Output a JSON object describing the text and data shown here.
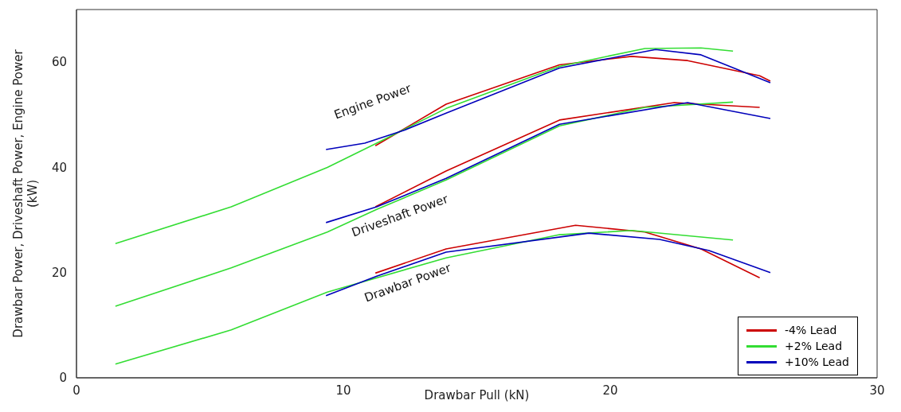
{
  "chart_data": {
    "type": "line",
    "xlabel": "Drawbar Pull (kN)",
    "ylabel": "Drawbar Power, Driveshaft Power, Engine Power (kW)",
    "xlim": [
      0,
      30
    ],
    "xticks": [
      0,
      10,
      20,
      30
    ],
    "ylim": [
      0,
      70
    ],
    "yticks": [
      0,
      20,
      40,
      60
    ],
    "legend": "bottom right",
    "grid": false,
    "annotations": [
      "Engine Power",
      "Driveshaft Power",
      "Drawbar Power"
    ],
    "series": [
      {
        "name": "-4% Lead",
        "color": "#cc0000",
        "x": [
          11.2,
          13.85,
          18.1,
          20.8,
          22.9,
          25.6,
          26.0
        ],
        "values": [
          44.1,
          52,
          59.5,
          61.1,
          60.3,
          57.4,
          56.4
        ]
      },
      {
        "name": "+2% Lead",
        "color": "#33dd33",
        "x": [
          1.46,
          5.8,
          9.4,
          11.25,
          13.85,
          18.1,
          21.3,
          23.4,
          24.6
        ],
        "values": [
          25.5,
          32.5,
          40,
          44.6,
          51.2,
          59.2,
          62.6,
          62.7,
          62.1
        ]
      },
      {
        "name": "+10% Lead",
        "color": "#0000bb",
        "x": [
          9.35,
          10.8,
          12.3,
          13.85,
          18.1,
          21.7,
          23.4,
          26.0
        ],
        "values": [
          43.4,
          44.6,
          47.1,
          50.3,
          58.9,
          62.4,
          61.4,
          56.1
        ]
      },
      {
        "color": "#cc0000",
        "x": [
          11.2,
          13.85,
          18.1,
          22.4,
          25.6
        ],
        "values": [
          32.5,
          39.3,
          49,
          52.3,
          51.4
        ]
      },
      {
        "color": "#33dd33",
        "x": [
          1.46,
          5.8,
          9.4,
          11.25,
          13.85,
          18.1,
          21.3,
          24.6
        ],
        "values": [
          13.6,
          20.9,
          27.7,
          32,
          37.6,
          47.9,
          51.4,
          52.4
        ]
      },
      {
        "color": "#0000bb",
        "x": [
          9.35,
          11.25,
          13.85,
          18.1,
          22.9,
          26.0
        ],
        "values": [
          29.5,
          32.5,
          37.9,
          48.2,
          52.3,
          49.3
        ]
      },
      {
        "color": "#cc0000",
        "x": [
          11.2,
          13.85,
          18.7,
          21.3,
          23.4,
          25.6
        ],
        "values": [
          19.9,
          24.5,
          29,
          27.7,
          24.5,
          19
        ]
      },
      {
        "color": "#33dd33",
        "x": [
          1.46,
          5.8,
          9.4,
          13.85,
          18.1,
          20.8,
          24.6
        ],
        "values": [
          2.6,
          9.1,
          16.3,
          22.8,
          27.2,
          28,
          26.2
        ]
      },
      {
        "color": "#0000bb",
        "x": [
          9.35,
          11.25,
          13.85,
          19.2,
          21.85,
          23.7,
          26.0
        ],
        "values": [
          15.6,
          19.3,
          23.9,
          27.5,
          26.3,
          24.2,
          20
        ]
      }
    ]
  }
}
